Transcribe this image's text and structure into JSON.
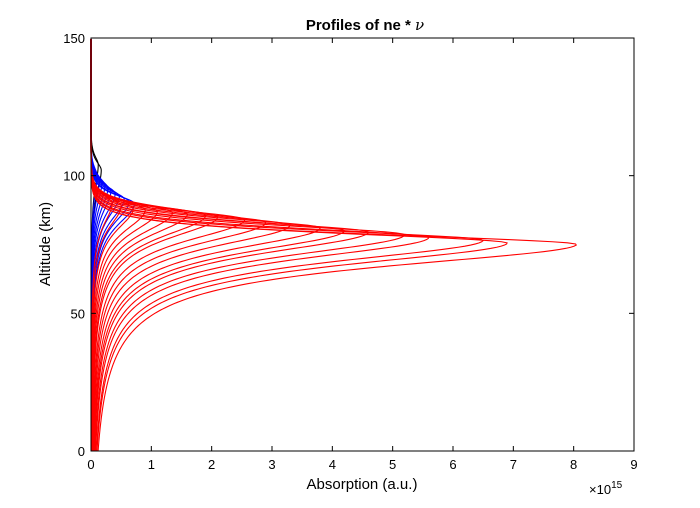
{
  "chart_data": {
    "type": "line",
    "title_prefix": "Profiles of ne * ",
    "title_symbol": "ν",
    "xlabel": "Absorption (a.u.)",
    "ylabel": "Altitude (km)",
    "x_multiplier_base": "×10",
    "x_multiplier_exp": "15",
    "xlim": [
      0,
      9
    ],
    "ylim": [
      0,
      150
    ],
    "x_ticks": [
      0,
      1,
      2,
      3,
      4,
      5,
      6,
      7,
      8,
      9
    ],
    "y_ticks": [
      0,
      50,
      100,
      150
    ],
    "grid": false,
    "legend": "none",
    "x_unit_note": "x values in units of 1e15",
    "colors": {
      "blue_group": "#0000ff",
      "red_group": "#ff0000",
      "black": "#000000"
    },
    "series": [
      {
        "color": "black",
        "peak_x": 0.12,
        "peak_alt": 104
      },
      {
        "color": "black",
        "peak_x": 0.17,
        "peak_alt": 102
      },
      {
        "color": "blue",
        "peak_x": 0.1,
        "peak_alt": 100
      },
      {
        "color": "blue",
        "peak_x": 0.14,
        "peak_alt": 98.5
      },
      {
        "color": "blue",
        "peak_x": 0.18,
        "peak_alt": 97.5
      },
      {
        "color": "blue",
        "peak_x": 0.23,
        "peak_alt": 96.5
      },
      {
        "color": "blue",
        "peak_x": 0.28,
        "peak_alt": 95.5
      },
      {
        "color": "blue",
        "peak_x": 0.33,
        "peak_alt": 94.5
      },
      {
        "color": "blue",
        "peak_x": 0.4,
        "peak_alt": 93.5
      },
      {
        "color": "blue",
        "peak_x": 0.47,
        "peak_alt": 92.5
      },
      {
        "color": "blue",
        "peak_x": 0.55,
        "peak_alt": 91.5
      },
      {
        "color": "blue",
        "peak_x": 0.63,
        "peak_alt": 90.5
      },
      {
        "color": "blue",
        "peak_x": 0.72,
        "peak_alt": 89.8
      },
      {
        "color": "red",
        "peak_x": 0.35,
        "peak_alt": 90
      },
      {
        "color": "red",
        "peak_x": 0.5,
        "peak_alt": 89
      },
      {
        "color": "red",
        "peak_x": 0.7,
        "peak_alt": 88
      },
      {
        "color": "red",
        "peak_x": 0.9,
        "peak_alt": 87.5
      },
      {
        "color": "red",
        "peak_x": 1.1,
        "peak_alt": 87
      },
      {
        "color": "red",
        "peak_x": 1.35,
        "peak_alt": 86.5
      },
      {
        "color": "red",
        "peak_x": 1.6,
        "peak_alt": 86
      },
      {
        "color": "red",
        "peak_x": 1.9,
        "peak_alt": 85.5
      },
      {
        "color": "red",
        "peak_x": 2.1,
        "peak_alt": 85
      },
      {
        "color": "red",
        "peak_x": 2.55,
        "peak_alt": 84
      },
      {
        "color": "red",
        "peak_x": 2.9,
        "peak_alt": 83
      },
      {
        "color": "red",
        "peak_x": 3.3,
        "peak_alt": 82
      },
      {
        "color": "red",
        "peak_x": 3.8,
        "peak_alt": 81
      },
      {
        "color": "red",
        "peak_x": 4.2,
        "peak_alt": 80
      },
      {
        "color": "red",
        "peak_x": 4.6,
        "peak_alt": 79.5
      },
      {
        "color": "red",
        "peak_x": 5.2,
        "peak_alt": 78.5
      },
      {
        "color": "red",
        "peak_x": 5.6,
        "peak_alt": 77.5
      },
      {
        "color": "red",
        "peak_x": 6.5,
        "peak_alt": 76.5
      },
      {
        "color": "red",
        "peak_x": 6.9,
        "peak_alt": 75.5
      },
      {
        "color": "red",
        "peak_x": 8.05,
        "peak_alt": 75
      }
    ]
  }
}
